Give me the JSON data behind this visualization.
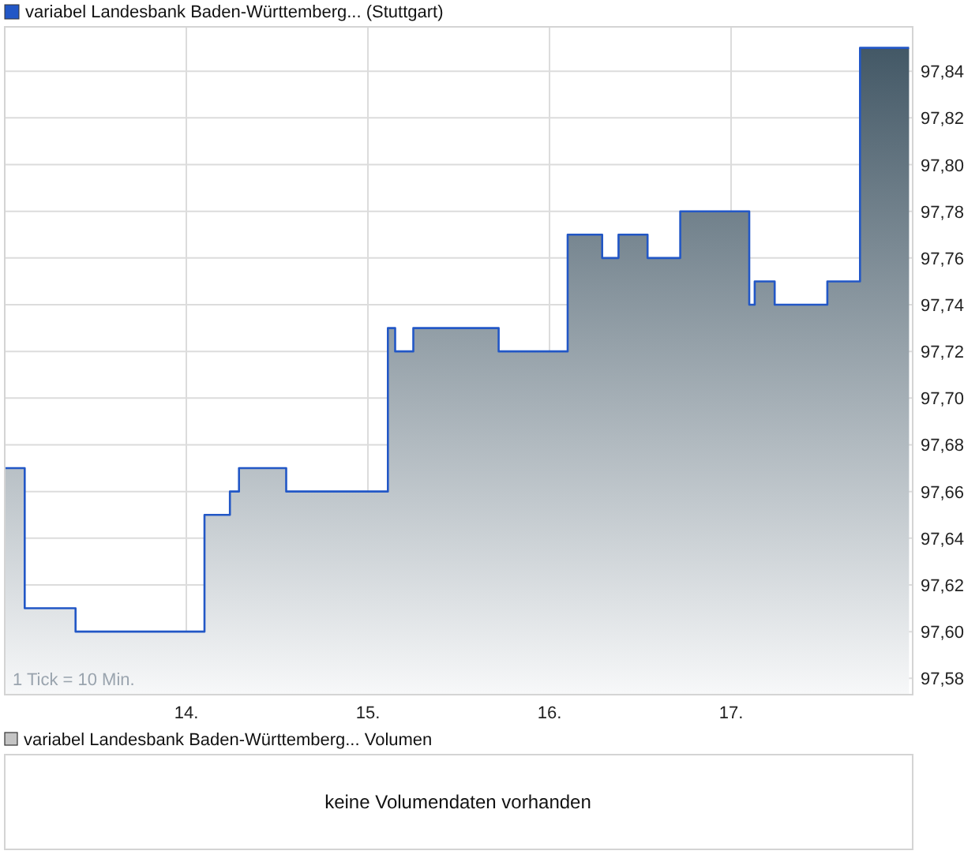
{
  "chart_data": {
    "type": "area",
    "xlim": [
      13,
      18
    ],
    "ylim": [
      97.573,
      97.859
    ],
    "xticks": [
      {
        "value": 14,
        "label": "14."
      },
      {
        "value": 15,
        "label": "15."
      },
      {
        "value": 16,
        "label": "16."
      },
      {
        "value": 17,
        "label": "17."
      }
    ],
    "yticks": [
      {
        "value": 97.58,
        "label": "97,58"
      },
      {
        "value": 97.6,
        "label": "97,60"
      },
      {
        "value": 97.62,
        "label": "97,62"
      },
      {
        "value": 97.64,
        "label": "97,64"
      },
      {
        "value": 97.66,
        "label": "97,66"
      },
      {
        "value": 97.68,
        "label": "97,68"
      },
      {
        "value": 97.7,
        "label": "97,70"
      },
      {
        "value": 97.72,
        "label": "97,72"
      },
      {
        "value": 97.74,
        "label": "97,74"
      },
      {
        "value": 97.76,
        "label": "97,76"
      },
      {
        "value": 97.78,
        "label": "97,78"
      },
      {
        "value": 97.8,
        "label": "97,80"
      },
      {
        "value": 97.82,
        "label": "97,82"
      },
      {
        "value": 97.84,
        "label": "97,84"
      }
    ],
    "grid": true,
    "legend": "top left",
    "series": [
      {
        "name": "variabel Landesbank Baden-Württemberg... (Stuttgart)",
        "color": "#2257c6",
        "x": [
          13.0,
          13.11,
          13.11,
          13.39,
          13.39,
          14.1,
          14.1,
          14.24,
          14.24,
          14.29,
          14.29,
          14.55,
          14.55,
          15.11,
          15.11,
          15.15,
          15.15,
          15.25,
          15.25,
          15.72,
          15.72,
          16.1,
          16.1,
          16.29,
          16.29,
          16.38,
          16.38,
          16.54,
          16.54,
          16.72,
          16.72,
          17.1,
          17.1,
          17.13,
          17.13,
          17.24,
          17.24,
          17.53,
          17.53,
          17.71,
          17.71,
          17.98
        ],
        "values": [
          97.67,
          97.67,
          97.61,
          97.61,
          97.6,
          97.6,
          97.65,
          97.65,
          97.66,
          97.66,
          97.67,
          97.67,
          97.66,
          97.66,
          97.73,
          97.73,
          97.72,
          97.72,
          97.73,
          97.73,
          97.72,
          97.72,
          97.77,
          97.77,
          97.76,
          97.76,
          97.77,
          97.77,
          97.76,
          97.76,
          97.78,
          97.78,
          97.74,
          97.74,
          97.75,
          97.75,
          97.74,
          97.74,
          97.75,
          97.75,
          97.85,
          97.85
        ]
      }
    ],
    "annotations": [
      "1 Tick = 10 Min.",
      "variabel Landesbank Baden-Württemberg... Volumen",
      "keine Volumendaten vorhanden"
    ]
  }
}
